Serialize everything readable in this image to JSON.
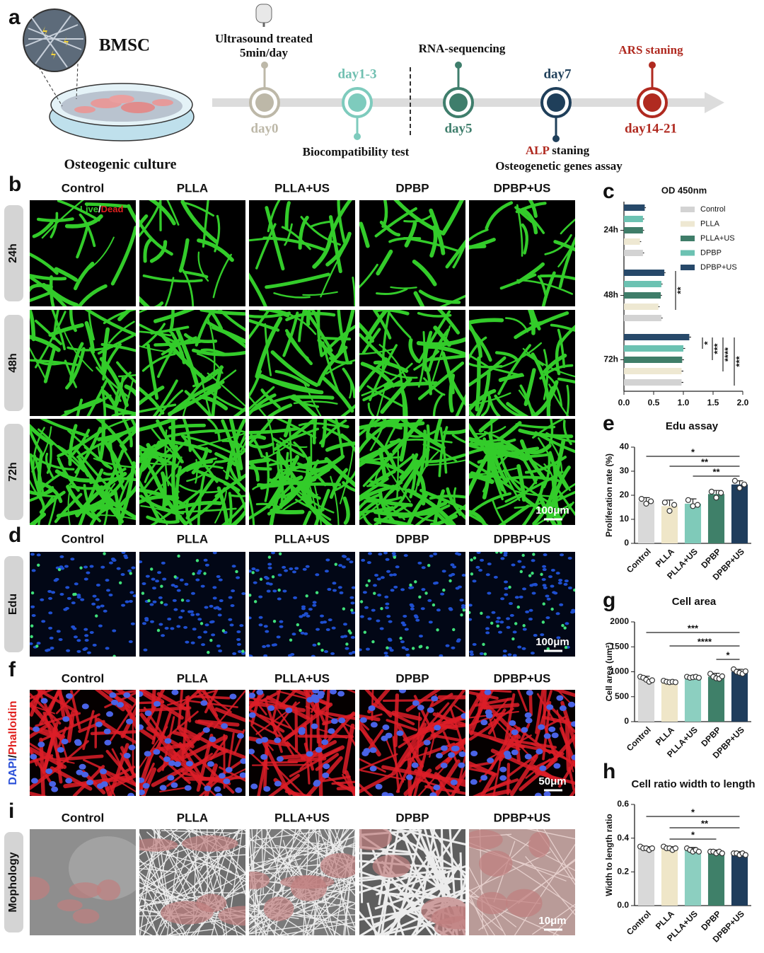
{
  "panel_labels": [
    "a",
    "b",
    "c",
    "d",
    "e",
    "f",
    "g",
    "h",
    "i"
  ],
  "schematic": {
    "bmsc": "BMSC",
    "culture": "Osteogenic culture",
    "ultrasound": [
      "Ultrasound treated",
      "5min/day"
    ],
    "day0": "day0",
    "day1_3": "day1-3",
    "biocompat": "Biocompatibility test",
    "rnaseq": "RNA-sequencing",
    "day5": "day5",
    "day7": "day7",
    "alp": "ALP",
    "alp_rest": "staning",
    "genes": "Osteogenetic genes assay",
    "ars": "ARS staning",
    "day14_21": "day14-21"
  },
  "groups": [
    "Control",
    "PLLA",
    "PLLA+US",
    "DPBP",
    "DPBP+US"
  ],
  "live_dead": {
    "rows": [
      "24h",
      "48h",
      "72h"
    ],
    "live": "Live",
    "separator": "/",
    "dead": "Dead",
    "scale_bar": "100μm"
  },
  "edu": {
    "row": "Edu",
    "scale_bar": "100μm"
  },
  "phalloidin": {
    "dapi": "DAPI",
    "separator": "/",
    "phalloidin": "Phalloidin",
    "scale_bar": "50μm"
  },
  "morphology": {
    "row": "Mophology",
    "scale_bar": "10μm"
  },
  "chart_data": [
    {
      "type": "hbar",
      "title": "OD 450nm",
      "categories": [
        "24h",
        "48h",
        "72h"
      ],
      "series": [
        {
          "name": "Control",
          "color": "#d3d3d3",
          "values": [
            0.32,
            0.63,
            0.97
          ],
          "errors": [
            0.02,
            0.02,
            0.03
          ]
        },
        {
          "name": "PLLA",
          "color": "#eee8d2",
          "values": [
            0.27,
            0.58,
            0.97
          ],
          "errors": [
            0.02,
            0.02,
            0.03
          ]
        },
        {
          "name": "PLLA+US",
          "color": "#3f7d69",
          "values": [
            0.32,
            0.62,
            0.98
          ],
          "errors": [
            0.02,
            0.02,
            0.03
          ]
        },
        {
          "name": "DPBP",
          "color": "#6cc2b2",
          "values": [
            0.32,
            0.63,
            1.0
          ],
          "errors": [
            0.02,
            0.02,
            0.03
          ]
        },
        {
          "name": "DPBP+US",
          "color": "#27496a",
          "values": [
            0.35,
            0.68,
            1.1
          ],
          "errors": [
            0.02,
            0.02,
            0.03
          ]
        }
      ],
      "xlim": [
        0,
        2
      ],
      "xticks": [
        {
          "value": 0,
          "label": "0.0"
        },
        {
          "value": 0.5,
          "label": "0.5"
        },
        {
          "value": 1,
          "label": "1.0"
        },
        {
          "value": 1.5,
          "label": "1.5"
        },
        {
          "value": 2,
          "label": "2.0"
        }
      ],
      "significance": [
        "**",
        "*",
        "***",
        "****",
        "***"
      ]
    },
    {
      "type": "bar",
      "title": "Edu assay",
      "ylabel": "Proliferation rate (%)",
      "categories": [
        "Control",
        "PLLA",
        "PLLA+US",
        "DPBP",
        "DPBP+US"
      ],
      "values": [
        17.5,
        15.5,
        16.5,
        20.5,
        24.5
      ],
      "errors": [
        1.5,
        2.5,
        2,
        1.5,
        1.5
      ],
      "points": [
        [
          18.5,
          16.5,
          17.5
        ],
        [
          17,
          13.5,
          16
        ],
        [
          18,
          15.5,
          16
        ],
        [
          21.5,
          19,
          21
        ],
        [
          26,
          23,
          24.5
        ]
      ],
      "colors": [
        "#d9d9d9",
        "#efe6c8",
        "#7fcab9",
        "#3f8069",
        "#1f3d5c"
      ],
      "ylim": [
        0,
        40
      ],
      "yticks": [
        0,
        10,
        20,
        30,
        40
      ],
      "significance": [
        "*",
        "**",
        "**"
      ]
    },
    {
      "type": "bar",
      "title": "Cell area",
      "ylabel": "Cell area (um²)",
      "categories": [
        "Control",
        "PLLA",
        "PLLA+US",
        "DPBP",
        "DPBP+US"
      ],
      "values": [
        850,
        800,
        890,
        900,
        1000
      ],
      "errors": [
        60,
        30,
        30,
        70,
        50
      ],
      "points": [
        [
          900,
          880,
          840,
          800,
          830
        ],
        [
          820,
          800,
          790,
          800,
          790
        ],
        [
          900,
          880,
          890,
          900,
          880
        ],
        [
          960,
          900,
          870,
          860,
          910
        ],
        [
          1050,
          1000,
          980,
          960,
          1010
        ]
      ],
      "colors": [
        "#d9d9d9",
        "#efe6c8",
        "#8ccfc0",
        "#3f8069",
        "#1f3d5c"
      ],
      "ylim": [
        0,
        2000
      ],
      "yticks": [
        0,
        500,
        1000,
        1500,
        2000
      ],
      "significance": [
        "***",
        "****",
        "*"
      ]
    },
    {
      "type": "bar",
      "title": "Cell ratio width to length",
      "ylabel": "Width to length ratio",
      "categories": [
        "Control",
        "PLLA",
        "PLLA+US",
        "DPBP",
        "DPBP+US"
      ],
      "values": [
        0.34,
        0.34,
        0.33,
        0.32,
        0.31
      ],
      "errors": [
        0.01,
        0.01,
        0.015,
        0.01,
        0.01
      ],
      "points": [
        [
          0.35,
          0.34,
          0.34,
          0.33,
          0.34
        ],
        [
          0.35,
          0.34,
          0.34,
          0.33,
          0.34
        ],
        [
          0.34,
          0.33,
          0.32,
          0.33,
          0.32
        ],
        [
          0.32,
          0.32,
          0.31,
          0.32,
          0.31
        ],
        [
          0.31,
          0.31,
          0.3,
          0.31,
          0.3
        ]
      ],
      "colors": [
        "#d9d9d9",
        "#efe6c8",
        "#8ccfc0",
        "#3f8069",
        "#1f3d5c"
      ],
      "ylim": [
        0,
        0.6
      ],
      "yticks": [
        {
          "value": 0,
          "label": "0.0"
        },
        {
          "value": 0.2,
          "label": "0.2"
        },
        {
          "value": 0.4,
          "label": "0.4"
        },
        {
          "value": 0.6,
          "label": "0.6"
        }
      ],
      "significance": [
        "*",
        "**",
        "*"
      ]
    }
  ]
}
